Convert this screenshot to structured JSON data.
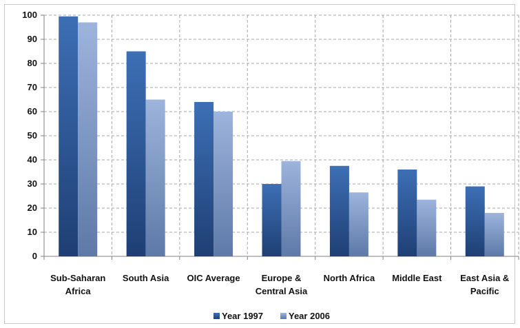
{
  "chart_data": {
    "type": "bar",
    "categories": [
      [
        "Sub-Saharan",
        "Africa"
      ],
      [
        "South Asia"
      ],
      [
        "OIC Average"
      ],
      [
        "Europe &",
        "Central Asia"
      ],
      [
        "North Africa"
      ],
      [
        "Middle East"
      ],
      [
        "East Asia &",
        "Pacific"
      ]
    ],
    "series": [
      {
        "name": "Year 1997",
        "values": [
          99.5,
          85,
          64,
          30,
          37.5,
          36,
          29
        ],
        "color_top": "#3d6fb5",
        "color_bottom": "#1f3f74"
      },
      {
        "name": "Year 2006",
        "values": [
          97,
          65,
          60,
          39.5,
          26.5,
          23.5,
          18
        ],
        "color_top": "#9db4dc",
        "color_bottom": "#5e79a8"
      }
    ],
    "title": "",
    "xlabel": "",
    "ylabel": "",
    "ylim": [
      0,
      100
    ],
    "yticks": [
      0,
      10,
      20,
      30,
      40,
      50,
      60,
      70,
      80,
      90,
      100
    ],
    "grid": true,
    "legend_position": "bottom"
  }
}
